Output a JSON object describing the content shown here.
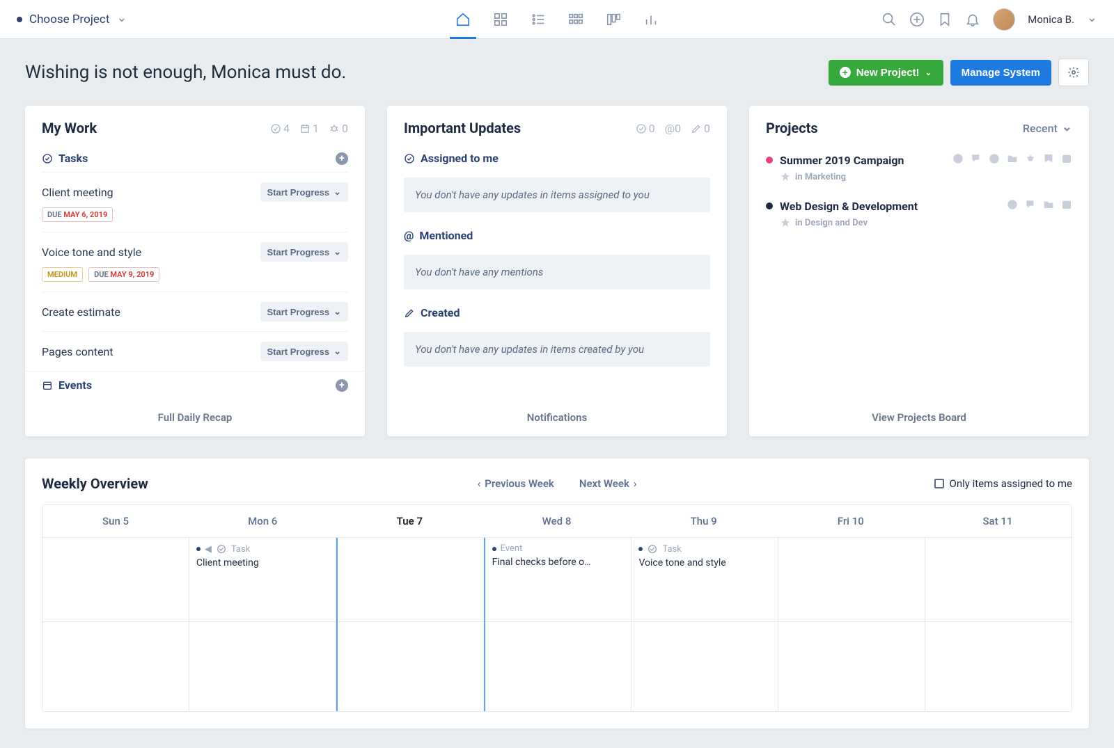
{
  "colors": {
    "accent_blue": "#1f7ae0",
    "accent_green": "#37a93c",
    "background": "#e8ecef",
    "text_dark": "#1f2d3d",
    "text_muted": "#7a8aa3",
    "border": "#e4e8ee"
  },
  "topbar": {
    "project_picker": "Choose Project",
    "user_name": "Monica B."
  },
  "header": {
    "greeting": "Wishing is not enough, Monica must do.",
    "new_project_label": "New Project!",
    "manage_system_label": "Manage System"
  },
  "my_work": {
    "title": "My Work",
    "stat_check": "4",
    "stat_cal": "1",
    "stat_bug": "0",
    "tasks_label": "Tasks",
    "events_label": "Events",
    "footer": "Full Daily Recap",
    "start_progress_label": "Start Progress",
    "tasks": [
      {
        "name": "Client meeting",
        "due_prefix": "DUE",
        "due_date": "MAY 6, 2019",
        "priority": null
      },
      {
        "name": "Voice tone and style",
        "due_prefix": "DUE",
        "due_date": "MAY 9, 2019",
        "priority": "MEDIUM"
      },
      {
        "name": "Create estimate",
        "due_prefix": null,
        "due_date": null,
        "priority": null
      },
      {
        "name": "Pages content",
        "due_prefix": null,
        "due_date": null,
        "priority": null
      }
    ]
  },
  "updates": {
    "title": "Important Updates",
    "stat_check": "0",
    "stat_at": "0",
    "stat_pencil": "0",
    "assigned_label": "Assigned to me",
    "assigned_empty": "You don't have any updates in items assigned to you",
    "mentioned_label": "Mentioned",
    "mentioned_empty": "You don't have any mentions",
    "created_label": "Created",
    "created_empty": "You don't have any updates in items created by you",
    "footer": "Notifications"
  },
  "projects": {
    "title": "Projects",
    "sort_label": "Recent",
    "footer": "View Projects Board",
    "in_prefix": "in",
    "items": [
      {
        "name": "Summer 2019 Campaign",
        "dot_color": "#e5447c",
        "category": "Marketing",
        "icon_count": 7
      },
      {
        "name": "Web Design & Development",
        "dot_color": "#1d2a40",
        "category": "Design and Dev",
        "icon_count": 4
      }
    ]
  },
  "weekly": {
    "title": "Weekly Overview",
    "prev_label": "Previous Week",
    "next_label": "Next Week",
    "only_assigned_label": "Only items assigned to me",
    "today_index": 2,
    "days": [
      "Sun 5",
      "Mon 6",
      "Tue 7",
      "Wed 8",
      "Thu 9",
      "Fri 10",
      "Sat 11"
    ],
    "events": {
      "mon": {
        "type": "Task",
        "title": "Client meeting",
        "arrow_left": true
      },
      "wed": {
        "type": "Event",
        "title": "Final checks before o…"
      },
      "thu": {
        "type": "Task",
        "title": "Voice tone and style"
      }
    }
  }
}
